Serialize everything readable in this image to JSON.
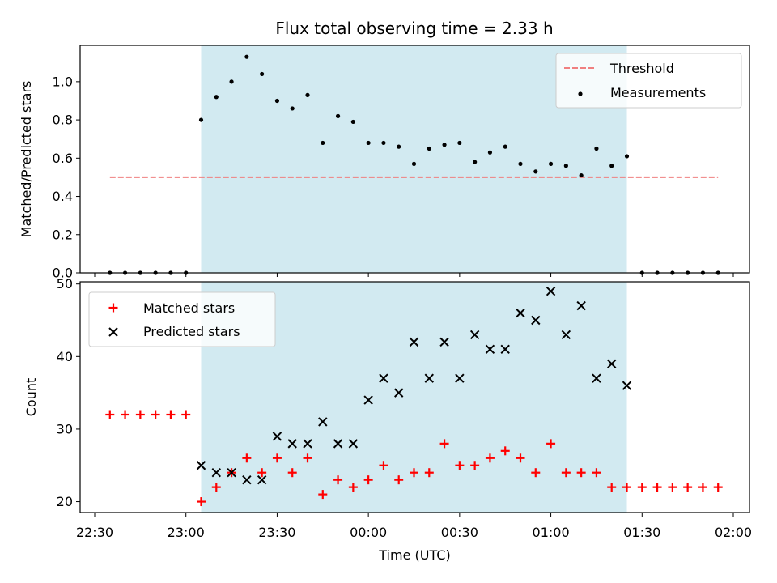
{
  "title": "Flux total observing time = 2.33 h",
  "colors": {
    "span": "#add8e6",
    "threshold": "#f08080",
    "measurement": "#000000",
    "matched": "#ff0000",
    "predicted": "#000000"
  },
  "chart_data": [
    {
      "type": "scatter",
      "panel": "top",
      "ylabel": "Matched/Predicted stars",
      "ylim": [
        0,
        1.19
      ],
      "yticks": [
        "0.0",
        "0.2",
        "0.4",
        "0.6",
        "0.8",
        "1.0"
      ],
      "yticks_values": [
        0,
        0.2,
        0.4,
        0.6,
        0.8,
        1.0
      ],
      "shaded_span_time": [
        "23:05",
        "01:25"
      ],
      "threshold": {
        "name": "Threshold",
        "y": 0.5,
        "x_range": [
          "22:35",
          "01:55"
        ]
      },
      "series": [
        {
          "name": "Measurements",
          "x": [
            "22:35",
            "22:40",
            "22:45",
            "22:50",
            "22:55",
            "23:00",
            "23:05",
            "23:10",
            "23:15",
            "23:20",
            "23:25",
            "23:30",
            "23:35",
            "23:40",
            "23:45",
            "23:50",
            "23:55",
            "00:00",
            "00:05",
            "00:10",
            "00:15",
            "00:20",
            "00:25",
            "00:30",
            "00:35",
            "00:40",
            "00:45",
            "00:50",
            "00:55",
            "01:00",
            "01:05",
            "01:10",
            "01:15",
            "01:20",
            "01:25",
            "01:30",
            "01:35",
            "01:40",
            "01:45",
            "01:50",
            "01:55"
          ],
          "y": [
            0,
            0,
            0,
            0,
            0,
            0,
            0.8,
            0.92,
            1.0,
            1.13,
            1.04,
            0.9,
            0.86,
            0.93,
            0.68,
            0.82,
            0.79,
            0.68,
            0.68,
            0.66,
            0.57,
            0.65,
            0.67,
            0.68,
            0.58,
            0.63,
            0.66,
            0.57,
            0.53,
            0.57,
            0.56,
            0.51,
            0.65,
            0.56,
            0.61,
            0,
            0,
            0,
            0,
            0,
            0
          ]
        }
      ],
      "legend": "top-right"
    },
    {
      "type": "scatter",
      "panel": "bottom",
      "xlabel": "Time (UTC)",
      "ylabel": "Count",
      "ylim": [
        18.5,
        50.3
      ],
      "yticks": [
        "20",
        "30",
        "40",
        "50"
      ],
      "yticks_values": [
        20,
        30,
        40,
        50
      ],
      "xticks": [
        "22:30",
        "23:00",
        "23:30",
        "00:00",
        "00:30",
        "01:00",
        "01:30",
        "02:00"
      ],
      "xticks_time": [
        "22:30",
        "23:00",
        "23:30",
        "00:00",
        "00:30",
        "01:00",
        "01:30",
        "02:00"
      ],
      "shaded_span_time": [
        "23:05",
        "01:25"
      ],
      "series": [
        {
          "name": "Matched stars",
          "x": [
            "22:35",
            "22:40",
            "22:45",
            "22:50",
            "22:55",
            "23:00",
            "23:05",
            "23:10",
            "23:15",
            "23:20",
            "23:25",
            "23:30",
            "23:35",
            "23:40",
            "23:45",
            "23:50",
            "23:55",
            "00:00",
            "00:05",
            "00:10",
            "00:15",
            "00:20",
            "00:25",
            "00:30",
            "00:35",
            "00:40",
            "00:45",
            "00:50",
            "00:55",
            "01:00",
            "01:05",
            "01:10",
            "01:15",
            "01:20",
            "01:25",
            "01:30",
            "01:35",
            "01:40",
            "01:45",
            "01:50",
            "01:55"
          ],
          "y": [
            32,
            32,
            32,
            32,
            32,
            32,
            20,
            22,
            24,
            26,
            24,
            26,
            24,
            26,
            21,
            23,
            22,
            23,
            25,
            23,
            24,
            24,
            28,
            25,
            25,
            26,
            27,
            26,
            24,
            28,
            24,
            24,
            24,
            22,
            22,
            22,
            22,
            22,
            22,
            22,
            22
          ]
        },
        {
          "name": "Predicted stars",
          "x": [
            "23:05",
            "23:10",
            "23:15",
            "23:20",
            "23:25",
            "23:30",
            "23:35",
            "23:40",
            "23:45",
            "23:50",
            "23:55",
            "00:00",
            "00:05",
            "00:10",
            "00:15",
            "00:20",
            "00:25",
            "00:30",
            "00:35",
            "00:40",
            "00:45",
            "00:50",
            "00:55",
            "01:00",
            "01:05",
            "01:10",
            "01:15",
            "01:20",
            "01:25"
          ],
          "y": [
            25,
            24,
            24,
            23,
            23,
            29,
            28,
            28,
            31,
            28,
            28,
            34,
            37,
            35,
            42,
            37,
            42,
            37,
            43,
            41,
            41,
            46,
            45,
            49,
            43,
            47,
            37,
            39,
            36
          ]
        }
      ],
      "legend": "top-left"
    }
  ]
}
